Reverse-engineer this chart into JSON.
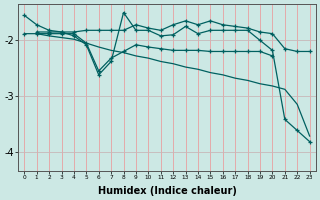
{
  "xlabel": "Humidex (Indice chaleur)",
  "background_color": "#cce8e4",
  "grid_color_v": "#e8a0a0",
  "grid_color_h": "#c8b8b8",
  "line_color": "#006060",
  "xlim": [
    -0.5,
    23.5
  ],
  "ylim": [
    -4.35,
    -1.35
  ],
  "yticks": [
    -4,
    -3,
    -2
  ],
  "xtick_labels": [
    "0",
    "1",
    "2",
    "3",
    "4",
    "5",
    "6",
    "7",
    "8",
    "9",
    "10",
    "11",
    "12",
    "13",
    "14",
    "15",
    "16",
    "17",
    "18",
    "19",
    "20",
    "21",
    "22",
    "23"
  ],
  "line1_x": [
    0,
    1,
    2,
    3,
    4,
    5,
    6,
    7,
    8,
    9,
    10,
    11,
    12,
    13,
    14,
    15,
    16,
    17,
    18,
    19,
    20,
    21,
    22,
    23
  ],
  "line1_y": [
    -1.55,
    -1.72,
    -1.82,
    -1.85,
    -1.85,
    -1.82,
    -1.82,
    -1.82,
    -1.82,
    -1.72,
    -1.78,
    -1.82,
    -1.72,
    -1.65,
    -1.72,
    -1.65,
    -1.72,
    -1.75,
    -1.78,
    -1.85,
    -1.88,
    -2.15,
    -2.2,
    -2.2
  ],
  "line2_x": [
    1,
    2,
    3,
    4,
    5,
    6,
    7,
    8,
    9,
    10,
    11,
    12,
    13,
    14,
    15,
    16,
    17,
    18,
    19,
    20,
    21,
    22,
    23
  ],
  "line2_y": [
    -1.88,
    -1.92,
    -1.95,
    -1.98,
    -2.05,
    -2.12,
    -2.18,
    -2.22,
    -2.28,
    -2.32,
    -2.38,
    -2.42,
    -2.48,
    -2.52,
    -2.58,
    -2.62,
    -2.68,
    -2.72,
    -2.78,
    -2.82,
    -2.88,
    -3.15,
    -3.72
  ],
  "line3_x": [
    0,
    1,
    2,
    3,
    4,
    5,
    6,
    7,
    8,
    9,
    10,
    11,
    12,
    13,
    14,
    15,
    16,
    17,
    18,
    19,
    20
  ],
  "line3_y": [
    -1.88,
    -1.88,
    -1.88,
    -1.88,
    -1.88,
    -2.05,
    -2.55,
    -2.32,
    -2.2,
    -2.08,
    -2.12,
    -2.15,
    -2.18,
    -2.18,
    -2.18,
    -2.2,
    -2.2,
    -2.2,
    -2.2,
    -2.2,
    -2.28
  ],
  "line4_x": [
    1,
    2,
    3,
    4,
    5,
    6,
    7,
    8,
    9,
    10,
    11,
    12,
    13,
    14,
    15,
    16,
    17,
    18,
    19,
    20,
    21,
    22,
    23
  ],
  "line4_y": [
    -1.85,
    -1.85,
    -1.85,
    -1.92,
    -2.08,
    -2.62,
    -2.38,
    -1.5,
    -1.82,
    -1.82,
    -1.92,
    -1.9,
    -1.75,
    -1.88,
    -1.82,
    -1.82,
    -1.82,
    -1.82,
    -2.0,
    -2.18,
    -3.42,
    -3.62,
    -3.82
  ]
}
